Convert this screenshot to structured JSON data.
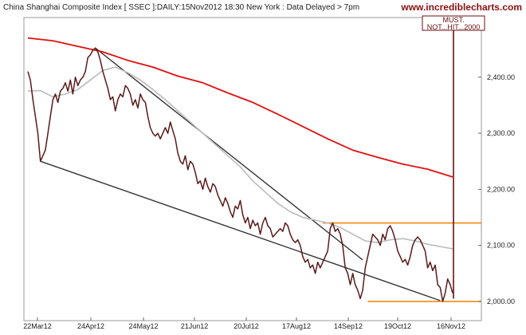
{
  "header": {
    "title": "China Shanghai Composite Index [ SSEC ]:DAILY:15Nov2012 18:30 New York : Data Delayed > 7pm",
    "brand": "www.incrediblecharts.com"
  },
  "chart_data": {
    "type": "line",
    "title": "China Shanghai Composite Index [ SSEC ]:DAILY:15Nov2012 18:30 New York : Data Delayed > 7pm",
    "xlabel": "",
    "ylabel": "",
    "x_ticks": [
      "22Mar12",
      "24Apr12",
      "24May12",
      "21Jun12",
      "20Jul12",
      "17Aug12",
      "14Sep12",
      "19Oct12",
      "16Nov12"
    ],
    "y_ticks": [
      2000,
      2100,
      2200,
      2300,
      2400
    ],
    "y_tick_labels": [
      "2,000.00",
      "2,100.00",
      "2,200.00",
      "2,300.00",
      "2,400.00"
    ],
    "ylim": [
      1980,
      2495
    ],
    "grid": false,
    "annotation": {
      "lines": [
        "MUST.",
        "NOT...HIT...2000"
      ],
      "arrow_target": 2005
    },
    "colors": {
      "price": "#5a1a1a",
      "ma_slow": "#e01010",
      "ma_fast": "#bbbbbb",
      "trendline": "#333333",
      "level": "#f08a10",
      "annotation": "#6b1010"
    },
    "series": [
      {
        "x": [
          0,
          1,
          2,
          3,
          4,
          5,
          6,
          7,
          8,
          9,
          10,
          11,
          12,
          13,
          14,
          15,
          16,
          17,
          18,
          19,
          20,
          21,
          22,
          23,
          24,
          25,
          26,
          27,
          28,
          29,
          30,
          31,
          32,
          33,
          34,
          35,
          36,
          37,
          38,
          39,
          40,
          41,
          42,
          43,
          44,
          45,
          46,
          47,
          48,
          49,
          50,
          51,
          52,
          53,
          54,
          55,
          56,
          57,
          58,
          59,
          60,
          61,
          62,
          63,
          64,
          65,
          66,
          67,
          68,
          69,
          70,
          71,
          72,
          73,
          74,
          75,
          76,
          77,
          78,
          79,
          80,
          81,
          82,
          83,
          84,
          85,
          86,
          87,
          88,
          89,
          90,
          91,
          92,
          93,
          94,
          95,
          96,
          97,
          98,
          99,
          100,
          101,
          102,
          103,
          104,
          105,
          106,
          107,
          108,
          109,
          110,
          111,
          112,
          113,
          114,
          115,
          116,
          117,
          118,
          119,
          120,
          121,
          122,
          123,
          124,
          125,
          126,
          127,
          128,
          129,
          130,
          131,
          132,
          133,
          134,
          135,
          136,
          137,
          138,
          139,
          140,
          141,
          142,
          143,
          144,
          145,
          146,
          147,
          148,
          149,
          150,
          151,
          152,
          153,
          154,
          155,
          156,
          157,
          158,
          159,
          160,
          161,
          162,
          163,
          164,
          165,
          166,
          167,
          168,
          169,
          170
        ],
        "values": [
          2410,
          2395,
          2360,
          2330,
          2300,
          2250,
          2260,
          2270,
          2300,
          2330,
          2360,
          2370,
          2355,
          2375,
          2380,
          2390,
          2375,
          2395,
          2370,
          2400,
          2385,
          2395,
          2400,
          2410,
          2435,
          2440,
          2448,
          2452,
          2445,
          2430,
          2410,
          2395,
          2380,
          2360,
          2365,
          2340,
          2360,
          2370,
          2365,
          2385,
          2380,
          2370,
          2350,
          2360,
          2345,
          2370,
          2360,
          2355,
          2330,
          2310,
          2300,
          2295,
          2300,
          2290,
          2300,
          2310,
          2300,
          2320,
          2305,
          2290,
          2265,
          2250,
          2245,
          2260,
          2235,
          2250,
          2245,
          2230,
          2210,
          2215,
          2200,
          2220,
          2205,
          2195,
          2210,
          2205,
          2190,
          2180,
          2170,
          2185,
          2175,
          2160,
          2150,
          2170,
          2165,
          2180,
          2155,
          2140,
          2150,
          2130,
          2145,
          2135,
          2140,
          2120,
          2140,
          2150,
          2135,
          2130,
          2115,
          2120,
          2125,
          2130,
          2125,
          2140,
          2135,
          2120,
          2110,
          2105,
          2110,
          2100,
          2080,
          2070,
          2075,
          2060,
          2065,
          2050,
          2070,
          2060,
          2070,
          2080,
          2090,
          2130,
          2140,
          2125,
          2130,
          2120,
          2100,
          2060,
          2050,
          2030,
          2050,
          2030,
          2020,
          2005,
          2020,
          2060,
          2080,
          2100,
          2120,
          2115,
          2110,
          2100,
          2120,
          2110,
          2130,
          2135,
          2125,
          2110,
          2090,
          2080,
          2070,
          2075,
          2065,
          2080,
          2100,
          2110,
          2115,
          2110,
          2100,
          2090,
          2060,
          2070,
          2055,
          2065,
          2030,
          2025,
          2000,
          2015,
          2040,
          2030,
          2015
        ]
      },
      {
        "x": [
          0,
          10,
          20,
          30,
          40,
          50,
          60,
          70,
          80,
          90,
          100,
          110,
          120,
          130,
          140,
          150,
          160,
          170
        ],
        "values": [
          2470,
          2465,
          2455,
          2445,
          2430,
          2418,
          2402,
          2390,
          2372,
          2355,
          2334,
          2312,
          2290,
          2270,
          2257,
          2245,
          2236,
          2222
        ]
      },
      {
        "x": [
          0,
          5,
          10,
          15,
          20,
          25,
          30,
          35,
          40,
          45,
          50,
          55,
          60,
          65,
          70,
          75,
          80,
          85,
          90,
          95,
          100,
          105,
          110,
          115,
          120,
          125,
          130,
          135,
          140,
          145,
          150,
          155,
          160,
          165,
          170
        ],
        "values": [
          2375,
          2376,
          2365,
          2370,
          2378,
          2395,
          2412,
          2418,
          2408,
          2395,
          2378,
          2360,
          2340,
          2320,
          2300,
          2280,
          2260,
          2240,
          2215,
          2195,
          2175,
          2160,
          2150,
          2145,
          2140,
          2132,
          2120,
          2108,
          2105,
          2110,
          2112,
          2108,
          2102,
          2098,
          2094
        ]
      }
    ]
  }
}
